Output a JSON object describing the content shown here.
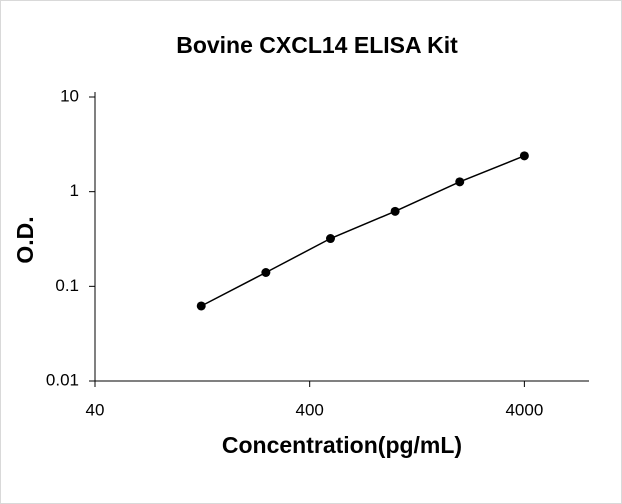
{
  "chart_data": {
    "type": "scatter",
    "title": "Bovine CXCL14 ELISA Kit",
    "x_label": "Concentration(pg/mL)",
    "y_label": "O.D.",
    "x": [
      125,
      250,
      500,
      1000,
      2000,
      4000
    ],
    "series": [
      {
        "values": [
          0.062,
          0.14,
          0.32,
          0.62,
          1.27,
          2.39
        ],
        "color": "#000000"
      }
    ],
    "xscale": "log",
    "yscale": "log",
    "xlim": [
      40,
      8000
    ],
    "ylim": [
      0.01,
      10
    ],
    "xticks": [
      40,
      400,
      4000
    ],
    "yticks": [
      0.01,
      0.1,
      1,
      10
    ],
    "grid": false
  }
}
